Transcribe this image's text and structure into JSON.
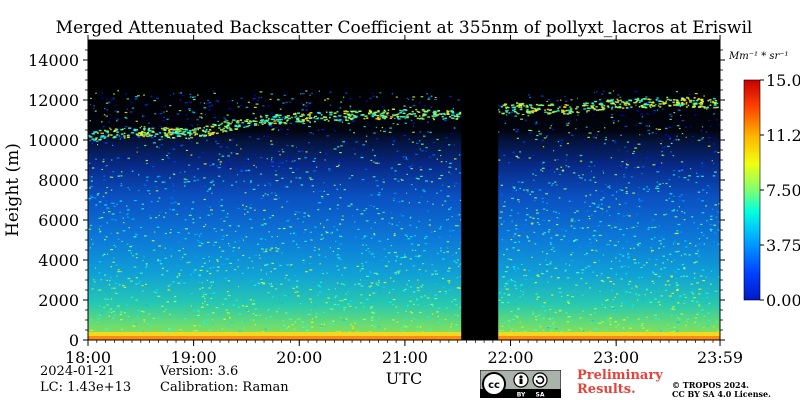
{
  "chart_data": {
    "type": "heatmap",
    "title": "Merged Attenuated Backscatter Coefficient at 355nm of pollyxt_lacros at Eriswil",
    "ylabel": "Height (m)",
    "xlabel": "UTC",
    "x_ticks": [
      "18:00",
      "19:00",
      "20:00",
      "21:00",
      "22:00",
      "23:00",
      "23:59"
    ],
    "x_range_hours": [
      18.0,
      23.983
    ],
    "y_ticks": [
      0,
      2000,
      4000,
      6000,
      8000,
      10000,
      12000,
      14000
    ],
    "ylim": [
      0,
      15000
    ],
    "colorbar": {
      "unit": "Mm⁻¹ * sr⁻¹",
      "ticks": [
        "0.00",
        "3.75",
        "7.50",
        "11.2",
        "15.0"
      ],
      "range": [
        0.0,
        15.0
      ],
      "colormap": "jet"
    },
    "data_gap_utc": [
      "21:32",
      "21:53"
    ],
    "cloud_layer_height_m": [
      {
        "utc": "18:00",
        "height": 10300
      },
      {
        "utc": "18:30",
        "height": 10500
      },
      {
        "utc": "19:00",
        "height": 10400
      },
      {
        "utc": "19:30",
        "height": 11000
      },
      {
        "utc": "20:00",
        "height": 11200
      },
      {
        "utc": "20:30",
        "height": 11300
      },
      {
        "utc": "21:00",
        "height": 11400
      },
      {
        "utc": "21:30",
        "height": 11300
      },
      {
        "utc": "22:00",
        "height": 11700
      },
      {
        "utc": "22:30",
        "height": 11600
      },
      {
        "utc": "23:00",
        "height": 11900
      },
      {
        "utc": "23:30",
        "height": 12000
      },
      {
        "utc": "23:59",
        "height": 11900
      }
    ],
    "noise_boundary_height_m": 8500,
    "surface_layer_top_m": 400
  },
  "footer": {
    "date": "2024-01-21",
    "lc": "LC: 1.43e+13",
    "version": "Version: 3.6",
    "calibration": "Calibration: Raman",
    "preliminary_line1": "Preliminary",
    "preliminary_line2": "Results.",
    "copyright_line1": "© TROPOS 2024.",
    "copyright_line2": "CC BY SA 4.0 License.",
    "license_logo": "cc-by-sa-icon"
  }
}
